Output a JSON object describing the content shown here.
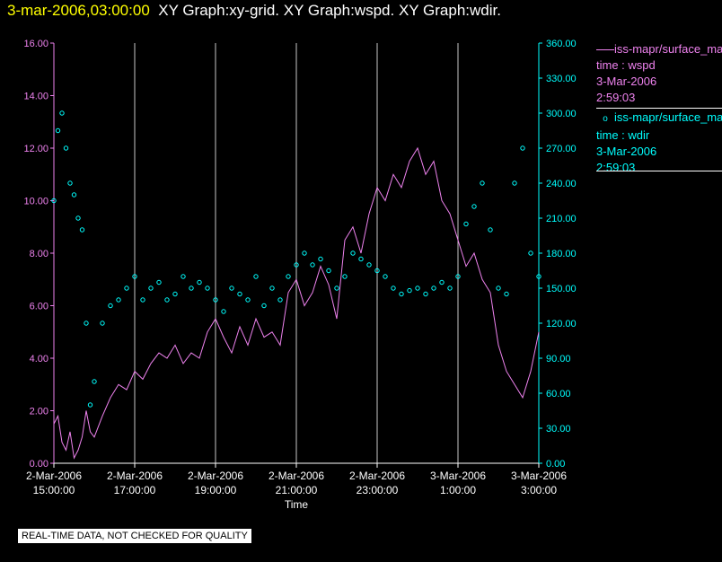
{
  "header": {
    "timestamp": "3-mar-2006,03:00:00",
    "title": "XY Graph:xy-grid.  XY Graph:wspd.  XY Graph:wdir."
  },
  "footer": {
    "note": "REAL-TIME DATA, NOT CHECKED FOR QUALITY"
  },
  "legend": [
    {
      "label": "iss-mapr/surface_mapr",
      "symbol": "line",
      "lines": [
        "time : wspd",
        "3-Mar-2006",
        "2:59:03"
      ]
    },
    {
      "label": "iss-mapr/surface_mapr",
      "symbol": "circle",
      "lines": [
        "time : wdir",
        "3-Mar-2006",
        "2:59:03"
      ]
    }
  ],
  "colors": {
    "wspd": "#ee82ee",
    "wdir": "#00ffff",
    "grid": "#c8c8c8",
    "title_time": "#ffff00"
  },
  "chart_data": {
    "type": "line",
    "xlabel": "Time",
    "x_range_hours": [
      15,
      27
    ],
    "x_ticks": [
      {
        "hour": 15,
        "date": "2-Mar-2006",
        "time": "15:00:00"
      },
      {
        "hour": 17,
        "date": "2-Mar-2006",
        "time": "17:00:00"
      },
      {
        "hour": 19,
        "date": "2-Mar-2006",
        "time": "19:00:00"
      },
      {
        "hour": 21,
        "date": "2-Mar-2006",
        "time": "21:00:00"
      },
      {
        "hour": 23,
        "date": "2-Mar-2006",
        "time": "23:00:00"
      },
      {
        "hour": 25,
        "date": "3-Mar-2006",
        "time": "1:00:00"
      },
      {
        "hour": 27,
        "date": "3-Mar-2006",
        "time": "3:00:00"
      }
    ],
    "y_left": {
      "range": [
        0,
        16
      ],
      "ticks": [
        "0.00",
        "2.00",
        "4.00",
        "6.00",
        "8.00",
        "10.00",
        "12.00",
        "14.00",
        "16.00"
      ]
    },
    "y_right": {
      "range": [
        0,
        360
      ],
      "ticks": [
        "0.00",
        "30.00",
        "60.00",
        "90.00",
        "120.00",
        "150.00",
        "180.00",
        "210.00",
        "240.00",
        "270.00",
        "300.00",
        "330.00",
        "360.00"
      ]
    },
    "grid": "vertical",
    "legend_position": "right",
    "series": [
      {
        "name": "wspd",
        "axis": "left",
        "style": "line",
        "x": [
          15.0,
          15.1,
          15.2,
          15.3,
          15.4,
          15.5,
          15.6,
          15.7,
          15.8,
          15.9,
          16.0,
          16.2,
          16.4,
          16.6,
          16.8,
          17.0,
          17.2,
          17.4,
          17.6,
          17.8,
          18.0,
          18.2,
          18.4,
          18.6,
          18.8,
          19.0,
          19.2,
          19.4,
          19.6,
          19.8,
          20.0,
          20.2,
          20.4,
          20.6,
          20.8,
          21.0,
          21.2,
          21.4,
          21.6,
          21.8,
          22.0,
          22.2,
          22.4,
          22.6,
          22.8,
          23.0,
          23.2,
          23.4,
          23.6,
          23.8,
          24.0,
          24.2,
          24.4,
          24.6,
          24.8,
          25.0,
          25.2,
          25.4,
          25.6,
          25.8,
          26.0,
          26.2,
          26.4,
          26.6,
          26.8,
          27.0
        ],
        "y": [
          1.5,
          1.8,
          0.8,
          0.5,
          1.2,
          0.2,
          0.5,
          1.0,
          2.0,
          1.2,
          1.0,
          1.8,
          2.5,
          3.0,
          2.8,
          3.5,
          3.2,
          3.8,
          4.2,
          4.0,
          4.5,
          3.8,
          4.2,
          4.0,
          5.0,
          5.5,
          4.8,
          4.2,
          5.2,
          4.5,
          5.5,
          4.8,
          5.0,
          4.5,
          6.5,
          7.0,
          6.0,
          6.5,
          7.5,
          6.8,
          5.5,
          8.5,
          9.0,
          8.0,
          9.5,
          10.5,
          10.0,
          11.0,
          10.5,
          11.5,
          12.0,
          11.0,
          11.5,
          10.0,
          9.5,
          8.5,
          7.5,
          8.0,
          7.0,
          6.5,
          4.5,
          3.5,
          3.0,
          2.5,
          3.5,
          5.0
        ]
      },
      {
        "name": "wdir",
        "axis": "right",
        "style": "circle",
        "x": [
          15.0,
          15.1,
          15.2,
          15.3,
          15.4,
          15.5,
          15.6,
          15.7,
          15.8,
          15.9,
          16.0,
          16.2,
          16.4,
          16.6,
          16.8,
          17.0,
          17.2,
          17.4,
          17.6,
          17.8,
          18.0,
          18.2,
          18.4,
          18.6,
          18.8,
          19.0,
          19.2,
          19.4,
          19.6,
          19.8,
          20.0,
          20.2,
          20.4,
          20.6,
          20.8,
          21.0,
          21.2,
          21.4,
          21.6,
          21.8,
          22.0,
          22.2,
          22.4,
          22.6,
          22.8,
          23.0,
          23.2,
          23.4,
          23.6,
          23.8,
          24.0,
          24.2,
          24.4,
          24.6,
          24.8,
          25.0,
          25.2,
          25.4,
          25.6,
          25.8,
          26.0,
          26.2,
          26.4,
          26.6,
          26.8,
          27.0
        ],
        "y": [
          225,
          285,
          300,
          270,
          240,
          230,
          210,
          200,
          120,
          50,
          70,
          120,
          135,
          140,
          150,
          160,
          140,
          150,
          155,
          140,
          145,
          160,
          150,
          155,
          150,
          140,
          130,
          150,
          145,
          140,
          160,
          135,
          150,
          140,
          160,
          170,
          180,
          170,
          175,
          165,
          150,
          160,
          180,
          175,
          170,
          165,
          160,
          150,
          145,
          148,
          150,
          145,
          150,
          155,
          150,
          160,
          205,
          220,
          240,
          200,
          150,
          145,
          240,
          270,
          180,
          160
        ]
      }
    ]
  }
}
